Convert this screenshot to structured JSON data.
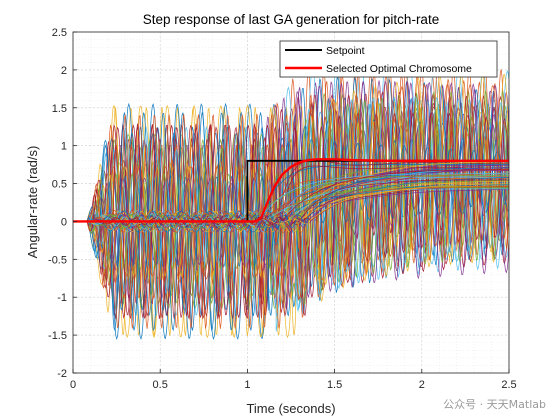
{
  "chart_data": {
    "type": "line",
    "title": "Step response of last GA generation for pitch-rate",
    "xlabel": "Time (seconds)",
    "ylabel": "Angular-rate (rad/s)",
    "xlim": [
      0,
      2.5
    ],
    "ylim": [
      -2,
      2.5
    ],
    "xticks": [
      0,
      0.5,
      1,
      1.5,
      2,
      2.5
    ],
    "yticks": [
      -2,
      -1.5,
      -1,
      -0.5,
      0,
      0.5,
      1,
      1.5,
      2,
      2.5
    ],
    "xtick_labels": [
      "0",
      "0.5",
      "1",
      "1.5",
      "2",
      "2.5"
    ],
    "ytick_labels": [
      "-2",
      "-1.5",
      "-1",
      "-0.5",
      "0",
      "0.5",
      "1",
      "1.5",
      "2",
      "2.5"
    ],
    "grid": true,
    "minor_grid": true,
    "legend": {
      "placement": "top-right",
      "entries": [
        "Setpoint",
        "Selected Optimal Chromosome"
      ]
    },
    "series": [
      {
        "name": "Setpoint",
        "color": "#000000",
        "x": [
          0,
          1.0,
          1.0,
          2.5
        ],
        "y": [
          0,
          0,
          0.8,
          0.8
        ]
      },
      {
        "name": "Selected Optimal Chromosome",
        "color": "#ff0000",
        "x": [
          0,
          1.05,
          1.08,
          1.12,
          1.16,
          1.2,
          1.25,
          1.3,
          1.35,
          1.4,
          1.5,
          1.6,
          1.8,
          2.0,
          2.5
        ],
        "y": [
          0,
          0,
          0.06,
          0.28,
          0.48,
          0.62,
          0.72,
          0.78,
          0.81,
          0.82,
          0.82,
          0.81,
          0.8,
          0.8,
          0.8
        ]
      }
    ],
    "population_colors": [
      "#0072bd",
      "#d95319",
      "#edb120",
      "#7e2f8e",
      "#77ac30",
      "#4dbeee",
      "#a2142f"
    ]
  },
  "watermark": "公众号 · 天天Matlab"
}
